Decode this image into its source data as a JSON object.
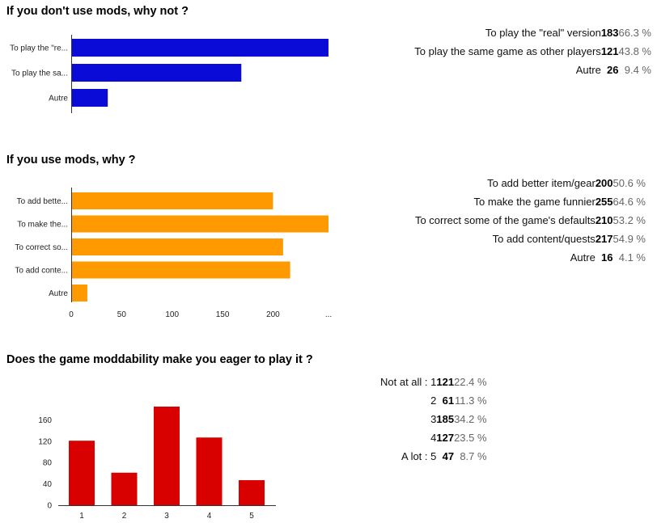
{
  "sections": [
    {
      "title": "If you don't use mods, why not ?",
      "stats": [
        {
          "label": "To play the \"real\" version",
          "count": "183",
          "percent": "66.3 %"
        },
        {
          "label": "To play the same game as other players",
          "count": "121",
          "percent": "43.8 %"
        },
        {
          "label": "Autre",
          "count": "26",
          "percent": "9.4 %"
        }
      ]
    },
    {
      "title": "If you use mods, why ?",
      "stats": [
        {
          "label": "To add  better item/gear",
          "count": "200",
          "percent": "50.6 %"
        },
        {
          "label": "To make the game funnier",
          "count": "255",
          "percent": "64.6 %"
        },
        {
          "label": "To correct some of the game's defaults",
          "count": "210",
          "percent": "53.2 %"
        },
        {
          "label": "To add content/quests",
          "count": "217",
          "percent": "54.9 %"
        },
        {
          "label": "Autre",
          "count": "16",
          "percent": "4.1 %"
        }
      ]
    },
    {
      "title": "Does the game moddability make you eager to play it ?",
      "stats": [
        {
          "label": "Not at all : 1",
          "count": "121",
          "percent": "22.4 %"
        },
        {
          "label": "2",
          "count": "61",
          "percent": "11.3 %"
        },
        {
          "label": "3",
          "count": "185",
          "percent": "34.2 %"
        },
        {
          "label": "4",
          "count": "127",
          "percent": "23.5 %"
        },
        {
          "label": "A lot : 5",
          "count": "47",
          "percent": "8.7 %"
        }
      ]
    }
  ],
  "chart_data": [
    {
      "type": "bar",
      "orientation": "horizontal",
      "color": "#0b0bd8",
      "categories": [
        "To play the \"re...",
        "To play the sa...",
        "Autre"
      ],
      "values": [
        183,
        121,
        26
      ],
      "xlim": [
        0,
        183
      ],
      "x_ticks": [],
      "grid": false
    },
    {
      "type": "bar",
      "orientation": "horizontal",
      "color": "#ff9900",
      "categories": [
        "To add  bette...",
        "To make the...",
        "To correct so...",
        "To add conte...",
        "Autre"
      ],
      "values": [
        200,
        255,
        210,
        217,
        16
      ],
      "xlim": [
        0,
        255
      ],
      "x_ticks": [
        {
          "value": 0,
          "label": "0"
        },
        {
          "value": 50,
          "label": "50"
        },
        {
          "value": 100,
          "label": "100"
        },
        {
          "value": 150,
          "label": "150"
        },
        {
          "value": 200,
          "label": "200"
        },
        {
          "value": 255,
          "label": "..."
        }
      ],
      "grid": false
    },
    {
      "type": "bar",
      "orientation": "vertical",
      "color": "#d90000",
      "categories": [
        "1",
        "2",
        "3",
        "4",
        "5"
      ],
      "values": [
        121,
        61,
        185,
        127,
        47
      ],
      "ylim": [
        0,
        185
      ],
      "y_ticks": [
        0,
        40,
        80,
        120,
        160
      ],
      "grid": false
    }
  ]
}
